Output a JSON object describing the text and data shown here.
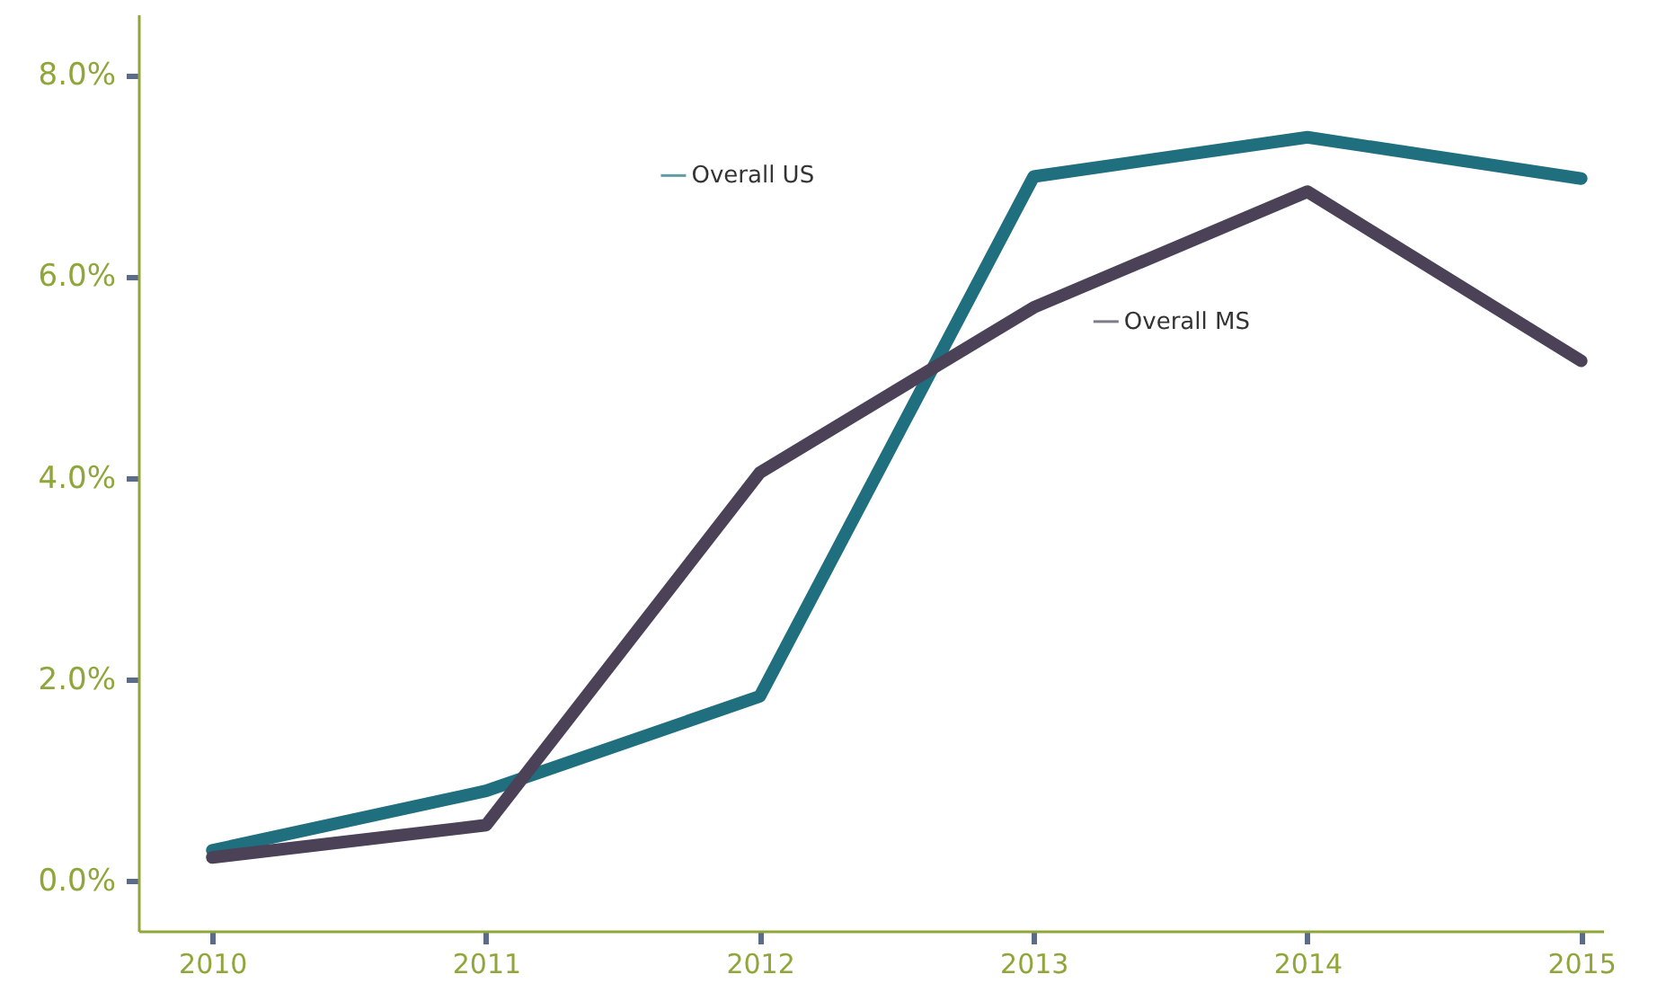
{
  "chart_data": {
    "type": "line",
    "categories": [
      "2010",
      "2011",
      "2012",
      "2013",
      "2014",
      "2015"
    ],
    "series": [
      {
        "name": "Overall US",
        "color": "#1f6f7f",
        "values": [
          0.3,
          0.89,
          1.83,
          6.99,
          7.38,
          6.97
        ]
      },
      {
        "name": "Overall MS",
        "color": "#4b4258",
        "values": [
          0.23,
          0.55,
          4.05,
          5.69,
          6.84,
          5.16
        ]
      }
    ],
    "ylim": [
      -0.5,
      8.6
    ],
    "yticks": [
      {
        "value": 0,
        "label": "0.0%"
      },
      {
        "value": 2,
        "label": "2.0%"
      },
      {
        "value": 4,
        "label": "4.0%"
      },
      {
        "value": 6,
        "label": "6.0%"
      },
      {
        "value": 8,
        "label": "8.0%"
      }
    ],
    "grid": false,
    "legend": "top",
    "marker": "none",
    "line_style": "solid"
  }
}
